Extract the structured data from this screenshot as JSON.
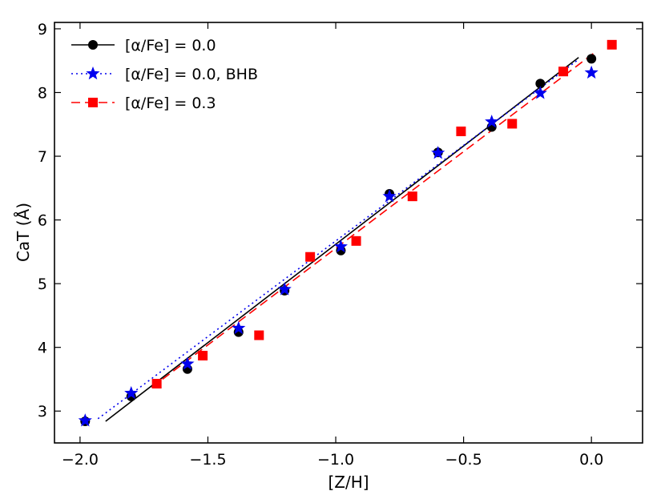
{
  "chart_data": {
    "type": "scatter",
    "xlabel": "[Z/H]",
    "ylabel": "CaT (Å)",
    "xlim": [
      -2.1,
      0.2
    ],
    "ylim": [
      2.5,
      9.1
    ],
    "xticks": [
      -2.0,
      -1.5,
      -1.0,
      -0.5,
      0.0
    ],
    "xtick_labels": [
      "−2.0",
      "−1.5",
      "−1.0",
      "−0.5",
      "0.0"
    ],
    "yticks": [
      3,
      4,
      5,
      6,
      7,
      8,
      9
    ],
    "ytick_labels": [
      "3",
      "4",
      "5",
      "6",
      "7",
      "8",
      "9"
    ],
    "legend_position": "upper-left",
    "series": [
      {
        "name": "[α/Fe] = 0.0",
        "marker": "circle",
        "color": "#000000",
        "line_style": "solid",
        "x": [
          -1.98,
          -1.8,
          -1.58,
          -1.38,
          -1.2,
          -0.98,
          -0.79,
          -0.6,
          -0.39,
          -0.2,
          0.0
        ],
        "y": [
          2.84,
          3.23,
          3.66,
          4.24,
          4.89,
          5.52,
          6.41,
          7.06,
          7.46,
          8.14,
          8.53
        ],
        "fit": {
          "x": [
            -1.9,
            -0.05
          ],
          "y": [
            2.84,
            8.55
          ]
        }
      },
      {
        "name": "[α/Fe] = 0.0, BHB",
        "marker": "star",
        "color": "#0000ee",
        "line_style": "dotted",
        "x": [
          -1.98,
          -1.8,
          -1.58,
          -1.38,
          -1.2,
          -0.98,
          -0.79,
          -0.6,
          -0.39,
          -0.2,
          0.0
        ],
        "y": [
          2.85,
          3.28,
          3.74,
          4.3,
          4.91,
          5.58,
          6.37,
          7.05,
          7.54,
          7.99,
          8.31
        ],
        "fit": {
          "x": [
            -1.93,
            -0.05
          ],
          "y": [
            2.88,
            8.52
          ]
        }
      },
      {
        "name": "[α/Fe] = 0.3",
        "marker": "square",
        "color": "#ff0000",
        "line_style": "dashed",
        "x": [
          -1.7,
          -1.52,
          -1.3,
          -1.1,
          -0.92,
          -0.7,
          -0.51,
          -0.31,
          -0.11,
          0.08
        ],
        "y": [
          3.43,
          3.87,
          4.19,
          5.42,
          5.67,
          6.37,
          7.39,
          7.51,
          8.33,
          8.75
        ],
        "fit": {
          "x": [
            -1.72,
            0.01
          ],
          "y": [
            3.37,
            8.62
          ]
        }
      }
    ]
  }
}
